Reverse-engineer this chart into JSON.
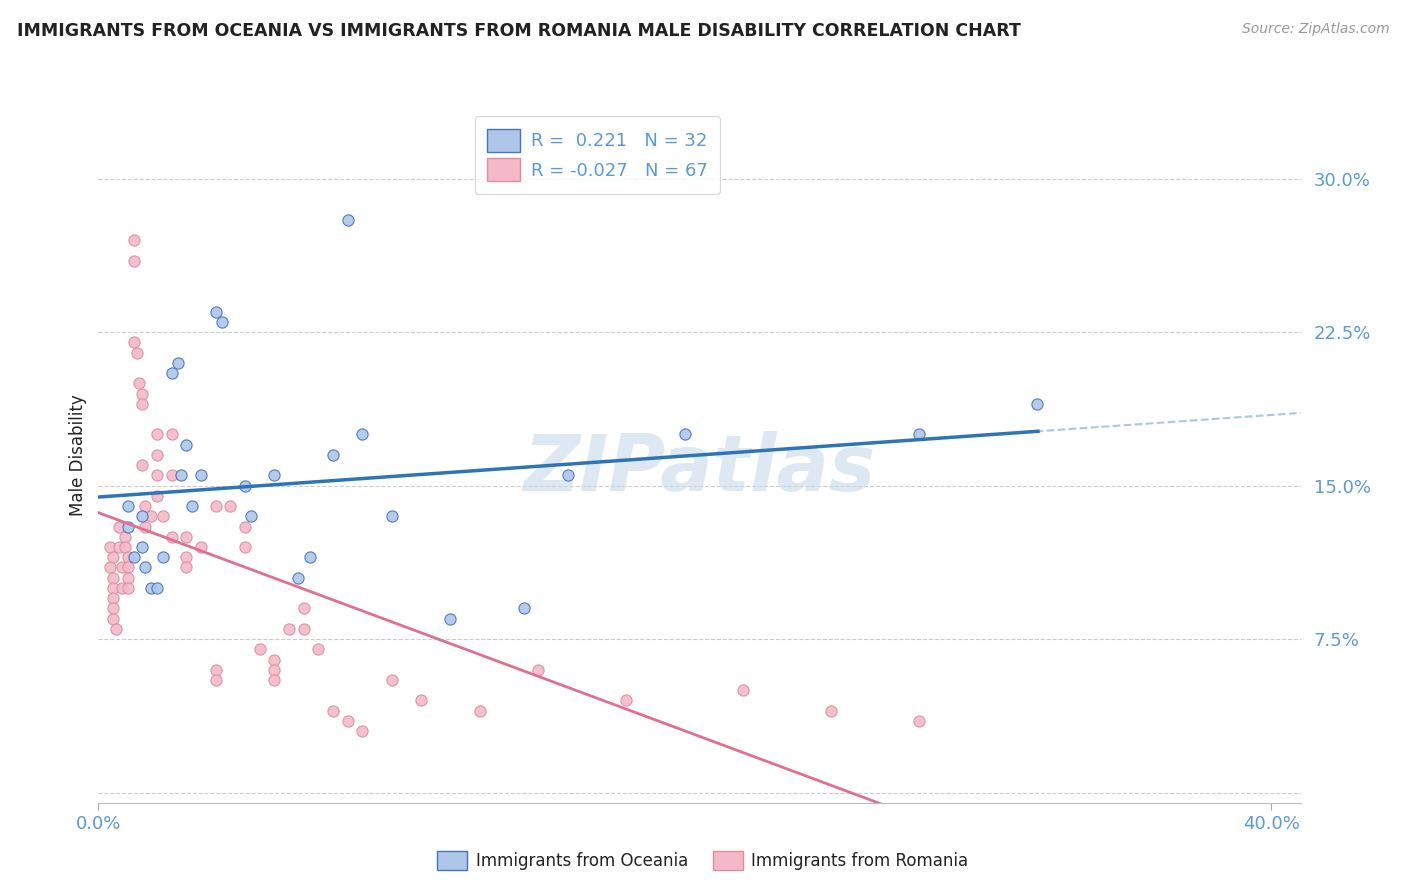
{
  "title": "IMMIGRANTS FROM OCEANIA VS IMMIGRANTS FROM ROMANIA MALE DISABILITY CORRELATION CHART",
  "source": "Source: ZipAtlas.com",
  "ylabel": "Male Disability",
  "ytick_vals": [
    0.0,
    0.075,
    0.15,
    0.225,
    0.3
  ],
  "ytick_labels": [
    "",
    "7.5%",
    "15.0%",
    "22.5%",
    "30.0%"
  ],
  "xlim": [
    0.0,
    0.41
  ],
  "ylim": [
    -0.005,
    0.335
  ],
  "oceania_color": "#aec6e8",
  "oceania_edge": "#4472c4",
  "oceania_line": "#2e75b6",
  "romania_color": "#f4b8c8",
  "romania_edge": "#d98fa0",
  "romania_line": "#e07090",
  "axis_tick_color": "#5b9bd5",
  "title_color": "#222222",
  "source_color": "#999999",
  "grid_color": "#cccccc",
  "R_oceania": "0.221",
  "N_oceania": "32",
  "R_romania": "-0.027",
  "N_romania": "67",
  "legend_label_oceania": "Immigrants from Oceania",
  "legend_label_romania": "Immigrants from Romania",
  "oceania_x": [
    0.01,
    0.01,
    0.012,
    0.015,
    0.015,
    0.016,
    0.018,
    0.02,
    0.022,
    0.025,
    0.027,
    0.028,
    0.03,
    0.032,
    0.035,
    0.04,
    0.042,
    0.05,
    0.052,
    0.06,
    0.068,
    0.072,
    0.08,
    0.085,
    0.09,
    0.1,
    0.12,
    0.145,
    0.16,
    0.2,
    0.28,
    0.32
  ],
  "oceania_y": [
    0.13,
    0.14,
    0.115,
    0.12,
    0.135,
    0.11,
    0.1,
    0.1,
    0.115,
    0.205,
    0.21,
    0.155,
    0.17,
    0.14,
    0.155,
    0.235,
    0.23,
    0.15,
    0.135,
    0.155,
    0.105,
    0.115,
    0.165,
    0.28,
    0.175,
    0.135,
    0.085,
    0.09,
    0.155,
    0.175,
    0.175,
    0.19
  ],
  "romania_x": [
    0.004,
    0.004,
    0.005,
    0.005,
    0.005,
    0.005,
    0.005,
    0.005,
    0.006,
    0.007,
    0.007,
    0.008,
    0.008,
    0.009,
    0.009,
    0.01,
    0.01,
    0.01,
    0.01,
    0.012,
    0.012,
    0.012,
    0.013,
    0.014,
    0.015,
    0.015,
    0.015,
    0.016,
    0.016,
    0.018,
    0.02,
    0.02,
    0.02,
    0.02,
    0.022,
    0.025,
    0.025,
    0.025,
    0.03,
    0.03,
    0.03,
    0.035,
    0.04,
    0.04,
    0.04,
    0.045,
    0.05,
    0.05,
    0.055,
    0.06,
    0.06,
    0.06,
    0.065,
    0.07,
    0.07,
    0.075,
    0.08,
    0.085,
    0.09,
    0.1,
    0.11,
    0.13,
    0.15,
    0.18,
    0.22,
    0.25,
    0.28
  ],
  "romania_y": [
    0.11,
    0.12,
    0.115,
    0.105,
    0.1,
    0.095,
    0.09,
    0.085,
    0.08,
    0.13,
    0.12,
    0.11,
    0.1,
    0.125,
    0.12,
    0.115,
    0.11,
    0.105,
    0.1,
    0.27,
    0.26,
    0.22,
    0.215,
    0.2,
    0.195,
    0.19,
    0.16,
    0.14,
    0.13,
    0.135,
    0.175,
    0.165,
    0.155,
    0.145,
    0.135,
    0.175,
    0.155,
    0.125,
    0.125,
    0.115,
    0.11,
    0.12,
    0.14,
    0.06,
    0.055,
    0.14,
    0.13,
    0.12,
    0.07,
    0.065,
    0.06,
    0.055,
    0.08,
    0.09,
    0.08,
    0.07,
    0.04,
    0.035,
    0.03,
    0.055,
    0.045,
    0.04,
    0.06,
    0.045,
    0.05,
    0.04,
    0.035
  ]
}
